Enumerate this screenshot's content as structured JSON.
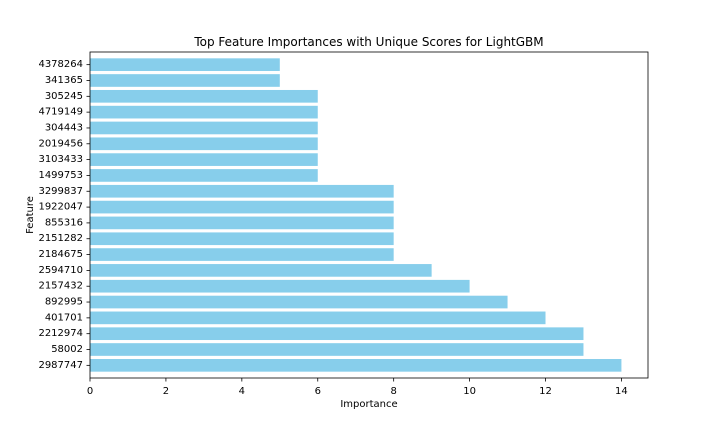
{
  "chart_data": {
    "type": "bar",
    "orientation": "horizontal",
    "title": "Top Feature Importances with Unique Scores for LightGBM",
    "xlabel": "Importance",
    "ylabel": "Feature",
    "categories": [
      "2987747",
      "58002",
      "2212974",
      "401701",
      "892995",
      "2157432",
      "2594710",
      "2184675",
      "2151282",
      "855316",
      "1922047",
      "3299837",
      "1499753",
      "3103433",
      "2019456",
      "304443",
      "4719149",
      "305245",
      "341365",
      "4378264"
    ],
    "values": [
      14,
      13,
      13,
      12,
      11,
      10,
      9,
      8,
      8,
      8,
      8,
      8,
      6,
      6,
      6,
      6,
      6,
      6,
      5,
      5
    ],
    "xlim": [
      0,
      14.7
    ],
    "xticks": [
      0,
      2,
      4,
      6,
      8,
      10,
      12,
      14
    ],
    "bar_color": "#87ceeb",
    "grid": false,
    "legend": "none"
  }
}
